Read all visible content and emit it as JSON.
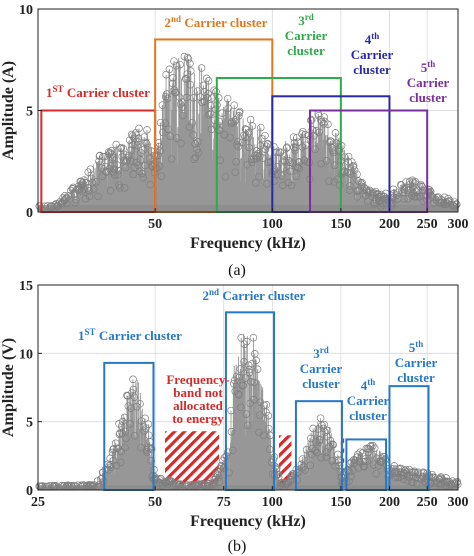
{
  "chart_data": [
    {
      "type": "line",
      "panel": "(a)",
      "xlabel": "Frequency (kHz)",
      "ylabel": "Amplitude (A)",
      "xscale": "log",
      "xlim": [
        25,
        300
      ],
      "ylim": [
        0,
        10
      ],
      "xticks": [
        50,
        100,
        150,
        200,
        250,
        300
      ],
      "xtick_labels": [
        "50",
        "100",
        "150",
        "200",
        "250",
        "300"
      ],
      "yticks": [
        0,
        5,
        10
      ],
      "ytick_labels": [
        "0",
        "5",
        "10"
      ],
      "grid": true,
      "series_color": "#8c8c8c",
      "peaks": [
        {
          "x": 27,
          "y": 0.3
        },
        {
          "x": 30,
          "y": 1.0
        },
        {
          "x": 33,
          "y": 1.8
        },
        {
          "x": 36,
          "y": 2.8
        },
        {
          "x": 39,
          "y": 3.3
        },
        {
          "x": 42,
          "y": 3.6
        },
        {
          "x": 44,
          "y": 3.9
        },
        {
          "x": 46,
          "y": 4.3
        },
        {
          "x": 48,
          "y": 4.0
        },
        {
          "x": 50,
          "y": 2.6
        },
        {
          "x": 53,
          "y": 7.0
        },
        {
          "x": 56,
          "y": 7.5
        },
        {
          "x": 60,
          "y": 7.8
        },
        {
          "x": 63,
          "y": 7.3
        },
        {
          "x": 66,
          "y": 7.1
        },
        {
          "x": 70,
          "y": 6.2
        },
        {
          "x": 74,
          "y": 6.0
        },
        {
          "x": 78,
          "y": 5.6
        },
        {
          "x": 82,
          "y": 5.1
        },
        {
          "x": 86,
          "y": 4.7
        },
        {
          "x": 90,
          "y": 4.9
        },
        {
          "x": 95,
          "y": 3.9
        },
        {
          "x": 100,
          "y": 3.2
        },
        {
          "x": 106,
          "y": 3.4
        },
        {
          "x": 112,
          "y": 3.7
        },
        {
          "x": 118,
          "y": 3.9
        },
        {
          "x": 124,
          "y": 4.5
        },
        {
          "x": 130,
          "y": 4.9
        },
        {
          "x": 136,
          "y": 4.8
        },
        {
          "x": 142,
          "y": 4.4
        },
        {
          "x": 150,
          "y": 3.7
        },
        {
          "x": 160,
          "y": 2.5
        },
        {
          "x": 170,
          "y": 1.5
        },
        {
          "x": 180,
          "y": 1.1
        },
        {
          "x": 190,
          "y": 0.9
        },
        {
          "x": 200,
          "y": 1.0
        },
        {
          "x": 215,
          "y": 1.5
        },
        {
          "x": 230,
          "y": 1.6
        },
        {
          "x": 245,
          "y": 1.3
        },
        {
          "x": 260,
          "y": 1.0
        },
        {
          "x": 280,
          "y": 0.7
        },
        {
          "x": 300,
          "y": 0.5
        }
      ],
      "regions": [
        {
          "sup": "ST",
          "color": "#d42b2b",
          "x0": 25.5,
          "x1": 50,
          "y": 5.0,
          "label": [
            {
              "pre": "1",
              "sup": "ST",
              "post": " Carrier cluster"
            }
          ]
        },
        {
          "color": "#e0781e",
          "x0": 50,
          "x1": 100,
          "y": 8.5,
          "label": [
            {
              "pre": "2",
              "sup": "nd",
              "post": " Carrier cluster"
            }
          ]
        },
        {
          "color": "#2eaa4a",
          "x0": 72,
          "x1": 150,
          "y": 6.6,
          "label": [
            {
              "pre": "3",
              "sup": "rd",
              "post": ""
            },
            {
              "pre": "Carrier",
              "sup": "",
              "post": ""
            },
            {
              "pre": "cluster",
              "sup": "",
              "post": ""
            }
          ]
        },
        {
          "color": "#2a2aa8",
          "x0": 100,
          "x1": 200,
          "y": 5.7,
          "label": [
            {
              "pre": "4",
              "sup": "th",
              "post": ""
            },
            {
              "pre": "Carrier",
              "sup": "",
              "post": ""
            },
            {
              "pre": "cluster",
              "sup": "",
              "post": ""
            }
          ]
        },
        {
          "color": "#7a2f9e",
          "x0": 125,
          "x1": 250,
          "y": 5.0,
          "label": [
            {
              "pre": "5",
              "sup": "th",
              "post": ""
            },
            {
              "pre": "Carrier",
              "sup": "",
              "post": ""
            },
            {
              "pre": "cluster",
              "sup": "",
              "post": ""
            }
          ]
        }
      ],
      "caption": "(a)"
    },
    {
      "type": "line",
      "panel": "(b)",
      "xlabel": "Frequency (kHz)",
      "ylabel": "Amplitude (V)",
      "xscale": "log",
      "xlim": [
        25,
        300
      ],
      "ylim": [
        0,
        15
      ],
      "xticks": [
        25,
        50,
        75,
        100,
        150,
        200,
        250,
        300
      ],
      "xtick_labels": [
        "25",
        "50",
        "75",
        "100",
        "150",
        "200",
        "250",
        "300"
      ],
      "yticks": [
        0,
        5,
        10,
        15
      ],
      "ytick_labels": [
        "0",
        "5",
        "10",
        "15"
      ],
      "grid": true,
      "series_color": "#8c8c8c",
      "peaks": [
        {
          "x": 26,
          "y": 0.3
        },
        {
          "x": 30,
          "y": 0.35
        },
        {
          "x": 35,
          "y": 0.4
        },
        {
          "x": 38,
          "y": 2.0
        },
        {
          "x": 40,
          "y": 4.5
        },
        {
          "x": 42,
          "y": 7.0
        },
        {
          "x": 44,
          "y": 8.5
        },
        {
          "x": 46,
          "y": 7.8
        },
        {
          "x": 48,
          "y": 5.0
        },
        {
          "x": 50,
          "y": 1.0
        },
        {
          "x": 60,
          "y": 0.4
        },
        {
          "x": 70,
          "y": 0.5
        },
        {
          "x": 77,
          "y": 3.0
        },
        {
          "x": 80,
          "y": 9.5
        },
        {
          "x": 83,
          "y": 11.8
        },
        {
          "x": 87,
          "y": 12.0
        },
        {
          "x": 91,
          "y": 11.0
        },
        {
          "x": 95,
          "y": 8.5
        },
        {
          "x": 99,
          "y": 4.0
        },
        {
          "x": 105,
          "y": 0.5
        },
        {
          "x": 118,
          "y": 2.0
        },
        {
          "x": 125,
          "y": 4.2
        },
        {
          "x": 132,
          "y": 5.4
        },
        {
          "x": 140,
          "y": 4.9
        },
        {
          "x": 148,
          "y": 2.5
        },
        {
          "x": 152,
          "y": 0.6
        },
        {
          "x": 160,
          "y": 2.4
        },
        {
          "x": 170,
          "y": 3.1
        },
        {
          "x": 180,
          "y": 3.3
        },
        {
          "x": 190,
          "y": 2.9
        },
        {
          "x": 200,
          "y": 2.0
        },
        {
          "x": 210,
          "y": 1.6
        },
        {
          "x": 225,
          "y": 1.5
        },
        {
          "x": 240,
          "y": 1.4
        },
        {
          "x": 260,
          "y": 1.1
        },
        {
          "x": 280,
          "y": 0.9
        },
        {
          "x": 300,
          "y": 0.6
        }
      ],
      "regions": [
        {
          "color": "#2878c8",
          "x0": 37,
          "x1": 49.5,
          "y": 9.3,
          "label": [
            {
              "pre": "1",
              "sup": "ST",
              "post": " Carrier cluster"
            }
          ]
        },
        {
          "color": "#2878c8",
          "x0": 76,
          "x1": 101,
          "y": 13.0,
          "label": [
            {
              "pre": "2",
              "sup": "nd",
              "post": " Carrier cluster"
            }
          ]
        },
        {
          "color": "#2878c8",
          "x0": 115,
          "x1": 151,
          "y": 6.5,
          "label": [
            {
              "pre": "3",
              "sup": "rd",
              "post": ""
            },
            {
              "pre": "Carrier",
              "sup": "",
              "post": ""
            },
            {
              "pre": "cluster",
              "sup": "",
              "post": ""
            }
          ]
        },
        {
          "color": "#2878c8",
          "x0": 155,
          "x1": 196,
          "y": 3.7,
          "label": [
            {
              "pre": "4",
              "sup": "th",
              "post": ""
            },
            {
              "pre": "Carrier",
              "sup": "",
              "post": ""
            },
            {
              "pre": "cluster",
              "sup": "",
              "post": ""
            }
          ]
        },
        {
          "color": "#2878c8",
          "x0": 200,
          "x1": 252,
          "y": 7.6,
          "label": [
            {
              "pre": "5",
              "sup": "th",
              "post": ""
            },
            {
              "pre": "Carrier",
              "sup": "",
              "post": ""
            },
            {
              "pre": "cluster",
              "sup": "",
              "post": ""
            }
          ]
        }
      ],
      "hatched": [
        {
          "x0": 53,
          "x1": 73,
          "y": 4.3,
          "color": "#d42b2b"
        },
        {
          "x0": 104,
          "x1": 112,
          "y": 4.0,
          "color": "#d42b2b"
        },
        {
          "x0": 150,
          "x1": 153,
          "y": 4.0,
          "color": "#d42b2b"
        }
      ],
      "annotation": {
        "lines": [
          "Frequency-",
          "band not",
          "allocated",
          "to energy"
        ],
        "color": "#d42b2b"
      },
      "caption": "(b)"
    }
  ]
}
